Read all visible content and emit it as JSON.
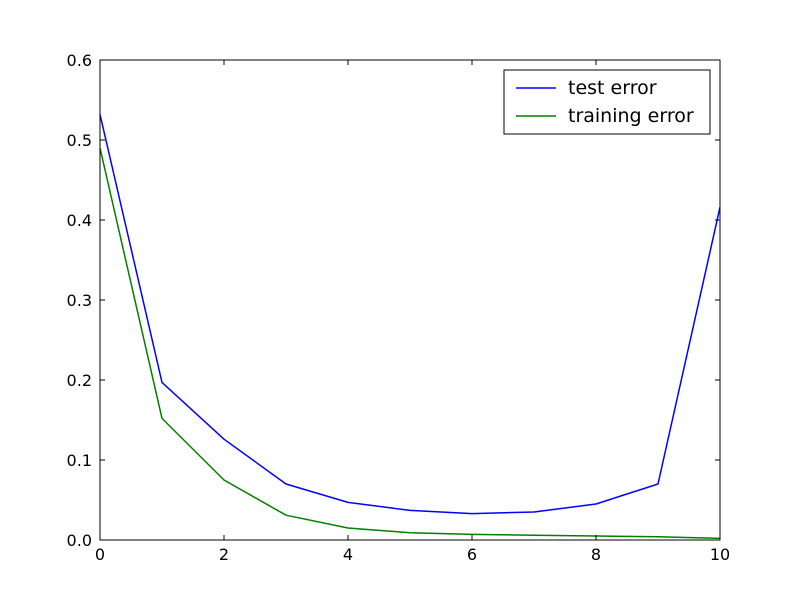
{
  "chart_data": {
    "type": "line",
    "title": "",
    "xlabel": "",
    "ylabel": "",
    "xlim": [
      0,
      10
    ],
    "ylim": [
      0,
      0.6
    ],
    "x_ticks": [
      "0",
      "2",
      "4",
      "6",
      "8",
      "10"
    ],
    "y_ticks": [
      "0.0",
      "0.1",
      "0.2",
      "0.3",
      "0.4",
      "0.5",
      "0.6"
    ],
    "grid": false,
    "legend_position": "top-right",
    "x": [
      0,
      1,
      2,
      3,
      4,
      5,
      6,
      7,
      8,
      9,
      10
    ],
    "series": [
      {
        "name": "test error",
        "color": "#0000ff",
        "values": [
          0.532,
          0.197,
          0.126,
          0.07,
          0.047,
          0.037,
          0.033,
          0.035,
          0.045,
          0.07,
          0.416
        ]
      },
      {
        "name": "training error",
        "color": "#008000",
        "values": [
          0.49,
          0.152,
          0.075,
          0.031,
          0.015,
          0.009,
          0.007,
          0.006,
          0.005,
          0.004,
          0.002
        ]
      }
    ]
  }
}
